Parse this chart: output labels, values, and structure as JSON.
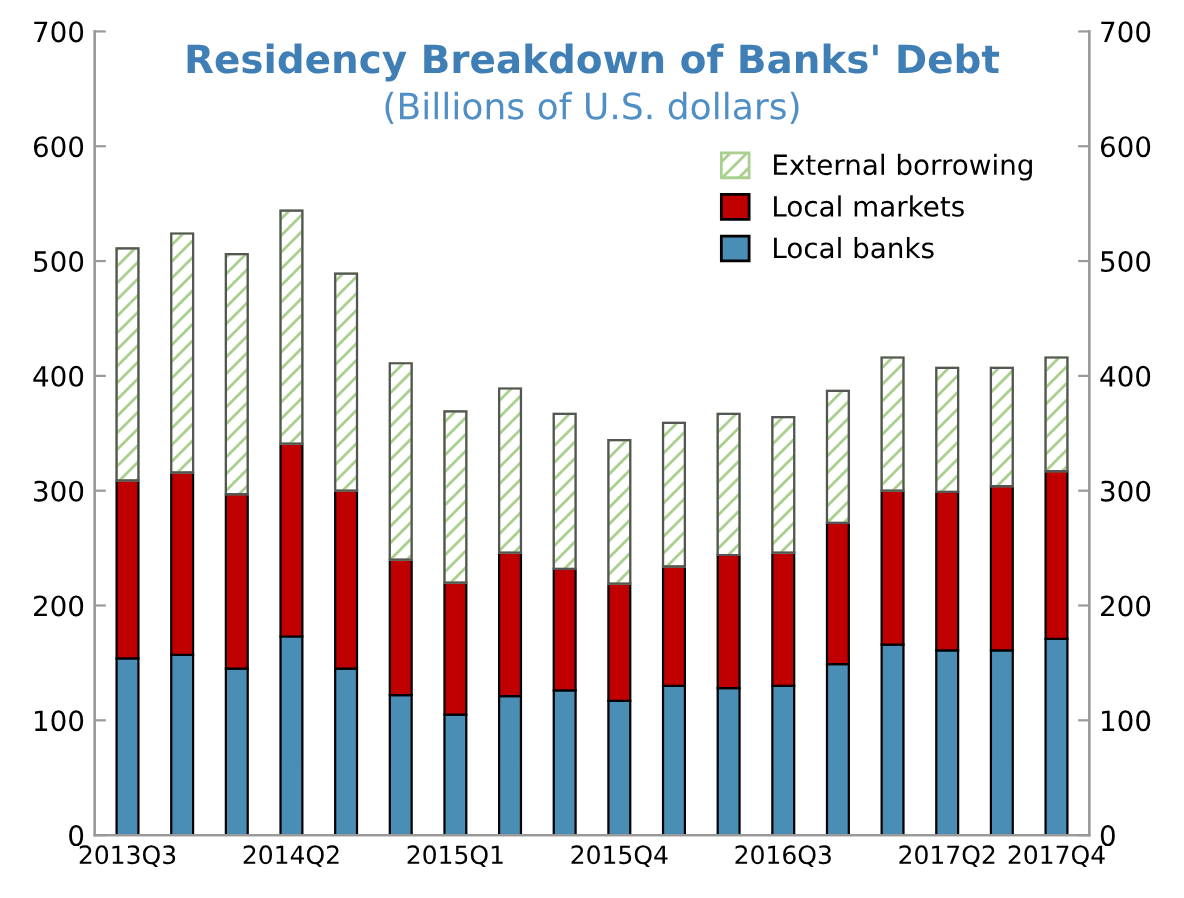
{
  "chart_data": {
    "type": "bar",
    "stacked": true,
    "title": "Residency Breakdown of Banks' Debt",
    "subtitle": "(Billions of U.S. dollars)",
    "categories": [
      "2013Q3",
      null,
      null,
      "2014Q2",
      null,
      null,
      "2015Q1",
      null,
      null,
      "2015Q4",
      null,
      null,
      "2016Q3",
      null,
      null,
      "2017Q2",
      null,
      "2017Q4"
    ],
    "series": [
      {
        "name": "Local banks",
        "color": "#4a8db5",
        "values": [
          154,
          157,
          145,
          173,
          145,
          122,
          105,
          121,
          126,
          117,
          130,
          128,
          130,
          149,
          166,
          161,
          161,
          171
        ]
      },
      {
        "name": "Local markets",
        "color": "#c00000",
        "values": [
          155,
          159,
          152,
          168,
          155,
          118,
          115,
          125,
          106,
          102,
          104,
          116,
          116,
          123,
          134,
          138,
          143,
          146
        ]
      },
      {
        "name": "External borrowing",
        "color": "#a9d08e",
        "values": [
          202,
          208,
          209,
          203,
          189,
          171,
          149,
          143,
          135,
          125,
          125,
          123,
          118,
          115,
          116,
          108,
          103,
          99
        ]
      }
    ],
    "ylim": [
      0,
      700
    ],
    "yticks": [
      0,
      100,
      200,
      300,
      400,
      500,
      600,
      700
    ],
    "y2lim": [
      0,
      700
    ],
    "y2ticks": [
      0,
      100,
      200,
      300,
      400,
      500,
      600,
      700
    ],
    "grid": false,
    "legend": "top right"
  }
}
